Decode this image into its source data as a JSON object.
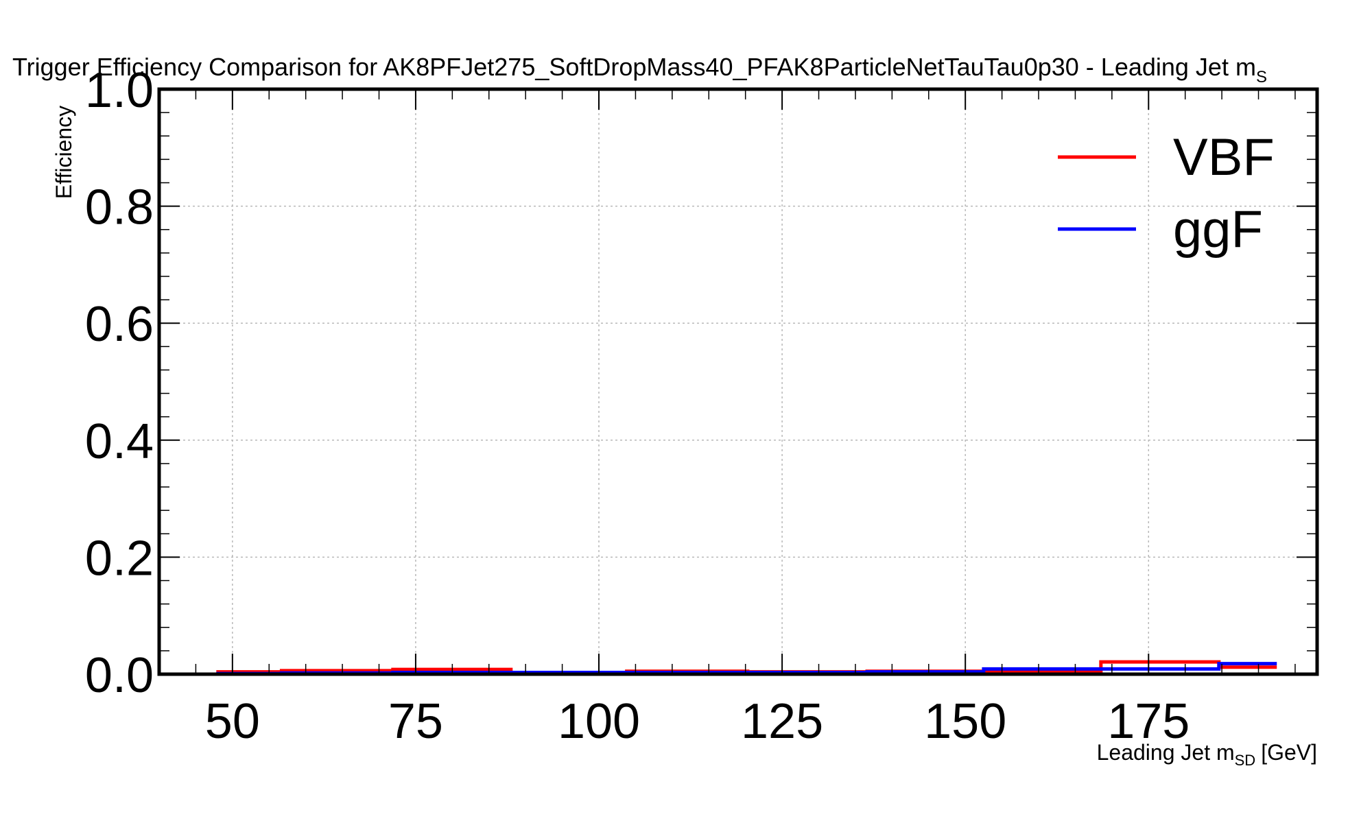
{
  "chart_data": {
    "type": "line",
    "title": "Trigger Efficiency Comparison for AK8PFJet275_SoftDropMass40_PFAK8ParticleNetTauTau0p30 - Leading Jet m",
    "title_sub": "S",
    "xlabel_main": "Leading Jet m",
    "xlabel_sub": "SD",
    "xlabel_unit": "[GeV]",
    "ylabel": "Efficiency",
    "xlim": [
      40,
      198
    ],
    "ylim": [
      0,
      1.0
    ],
    "x_ticks": [
      50,
      75,
      100,
      125,
      150,
      175
    ],
    "x_tick_labels": [
      "50",
      "75",
      "100",
      "125",
      "150",
      "175"
    ],
    "y_ticks": [
      0,
      0.2,
      0.4,
      0.6,
      0.8,
      1.0
    ],
    "y_tick_labels": [
      "0.0",
      "0.2",
      "0.4",
      "0.6",
      "0.8",
      "1.0"
    ],
    "grid": true,
    "legend_position": "top-right",
    "series": [
      {
        "name": "VBF",
        "color": "#ff0000",
        "bin_edges": [
          47.8,
          56.7,
          71.9,
          88.0,
          103.8,
          120.3,
          136.6,
          152.5,
          168.5,
          184.6,
          192.5
        ],
        "values": [
          0.004,
          0.006,
          0.008,
          0.003,
          0.005,
          0.004,
          0.005,
          0.004,
          0.021,
          0.012
        ]
      },
      {
        "name": "ggF",
        "color": "#0000ff",
        "bin_edges": [
          47.8,
          56.7,
          71.9,
          88.0,
          103.8,
          120.3,
          136.6,
          152.5,
          168.5,
          184.6,
          192.5
        ],
        "values": [
          0.001,
          0.002,
          0.003,
          0.003,
          0.003,
          0.003,
          0.004,
          0.009,
          0.009,
          0.018
        ]
      }
    ]
  }
}
